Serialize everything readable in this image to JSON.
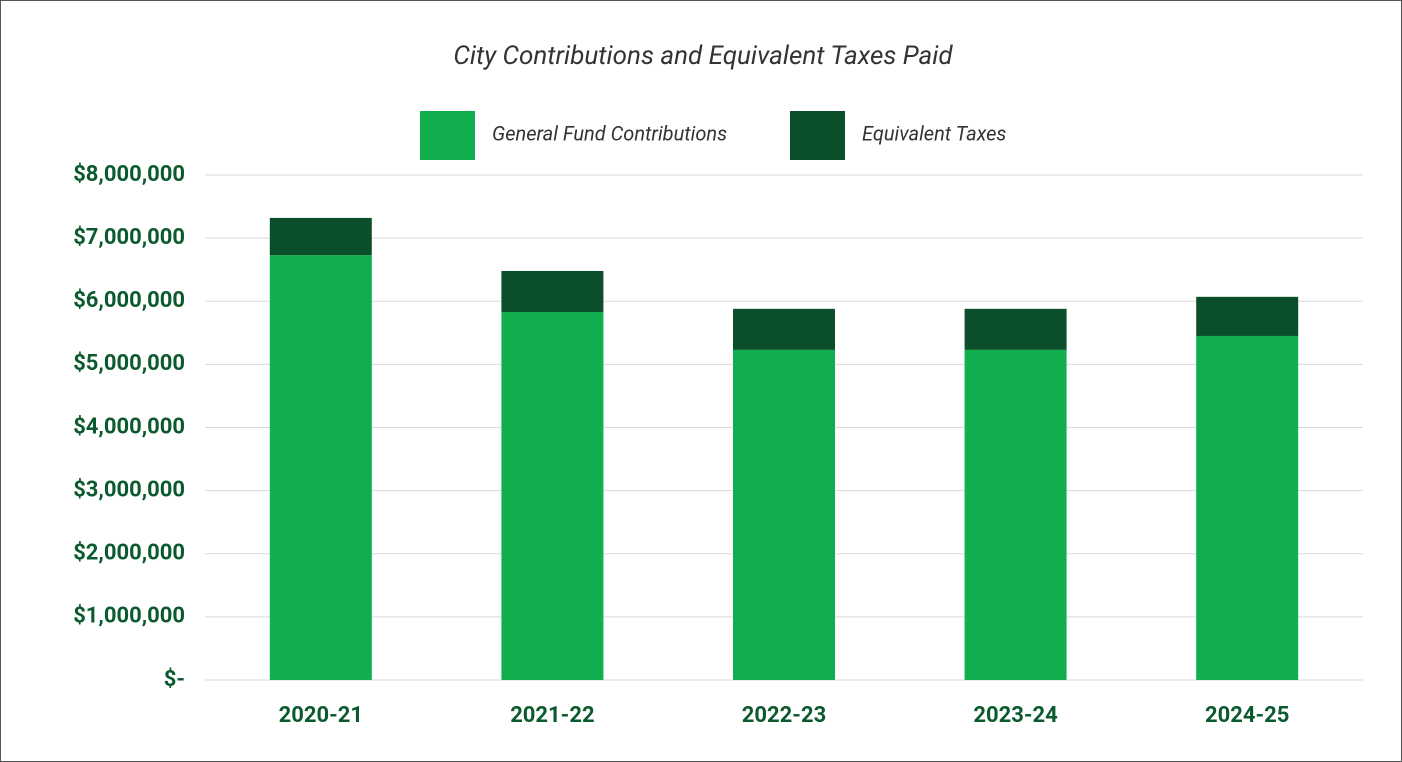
{
  "chart_data": {
    "type": "stacked_bar",
    "title": "City Contributions and Equivalent Taxes Paid",
    "categories": [
      "2020-21",
      "2021-22",
      "2022-23",
      "2023-24",
      "2024-25"
    ],
    "series": [
      {
        "name": "General Fund Contributions",
        "color": "#10ae4c",
        "values": [
          6730000,
          5830000,
          5230000,
          5230000,
          5450000
        ]
      },
      {
        "name": "Equivalent Taxes",
        "color": "#0b4f2a",
        "values": [
          590000,
          650000,
          650000,
          650000,
          620000
        ]
      }
    ],
    "ylim": [
      0,
      8000000
    ],
    "yticks": [
      {
        "value": 0,
        "label": "$-"
      },
      {
        "value": 1000000,
        "label": "$1,000,000"
      },
      {
        "value": 2000000,
        "label": "$2,000,000"
      },
      {
        "value": 3000000,
        "label": "$3,000,000"
      },
      {
        "value": 4000000,
        "label": "$4,000,000"
      },
      {
        "value": 5000000,
        "label": "$5,000,000"
      },
      {
        "value": 6000000,
        "label": "$6,000,000"
      },
      {
        "value": 7000000,
        "label": "$7,000,000"
      },
      {
        "value": 8000000,
        "label": "$8,000,000"
      }
    ],
    "grid": true,
    "legend": "top"
  }
}
